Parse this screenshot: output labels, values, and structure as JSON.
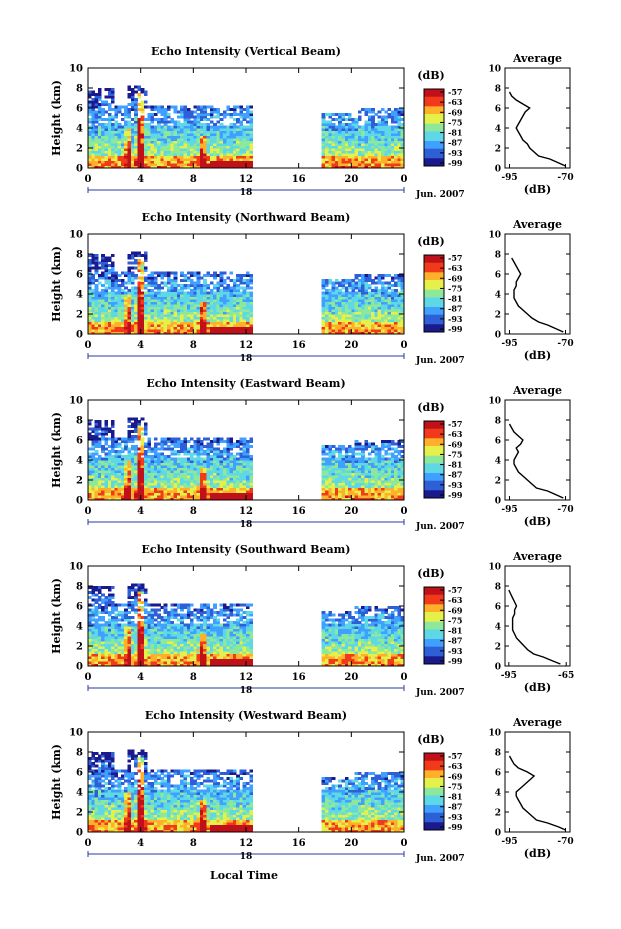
{
  "figure": {
    "xlabel": "Local Time",
    "date_label": "Jun. 2007",
    "day_marker": "18",
    "xticks": [
      "0",
      "4",
      "8",
      "12",
      "16",
      "20",
      "0"
    ],
    "yticks": [
      "0",
      "2",
      "4",
      "6",
      "8",
      "10"
    ],
    "ylabel": "Height (km)",
    "colorbar_unit": "(dB)",
    "colorbar_ticks": [
      "-57",
      "-63",
      "-69",
      "-75",
      "-81",
      "-87",
      "-93",
      "-99"
    ],
    "colorbar_colors": [
      "#1a1a8c",
      "#2e5fd6",
      "#3fa0ff",
      "#5fd8e6",
      "#8ee89a",
      "#e6f04a",
      "#ffb02a",
      "#f03a1a",
      "#c0101a"
    ],
    "avg_title": "Average",
    "avg_xlabel": "(dB)"
  },
  "chart_data": [
    {
      "type": "heatmap",
      "title": "Echo Intensity (Vertical Beam)",
      "x_range_hours": [
        0,
        24
      ],
      "y_range_km": [
        0,
        10
      ],
      "data_gap_hours": [
        12.3,
        17.7
      ],
      "average_profile": {
        "type": "line",
        "title": "Average",
        "xlabel": "(dB)",
        "xticks": [
          "-95",
          "-70"
        ],
        "xlim": [
          -97,
          -68
        ],
        "height_km": [
          0.2,
          0.5,
          0.9,
          1.2,
          1.6,
          2.0,
          2.4,
          2.8,
          3.2,
          3.6,
          4.0,
          4.4,
          4.8,
          5.2,
          5.6,
          6.0,
          6.4,
          6.8,
          7.2,
          7.6
        ],
        "db": [
          -70,
          -73,
          -77,
          -82,
          -84,
          -86,
          -87,
          -89,
          -90,
          -91,
          -92,
          -91,
          -90,
          -89,
          -88,
          -86,
          -89,
          -92,
          -94,
          -95
        ]
      }
    },
    {
      "type": "heatmap",
      "title": "Echo Intensity (Northward Beam)",
      "x_range_hours": [
        0,
        24
      ],
      "y_range_km": [
        0,
        10
      ],
      "data_gap_hours": [
        12.3,
        17.7
      ],
      "average_profile": {
        "type": "line",
        "title": "Average",
        "xlabel": "(dB)",
        "xticks": [
          "-95",
          "-70"
        ],
        "xlim": [
          -97,
          -68
        ],
        "height_km": [
          0.2,
          0.5,
          0.9,
          1.2,
          1.6,
          2.0,
          2.4,
          2.8,
          3.2,
          3.6,
          4.0,
          4.4,
          4.8,
          5.2,
          5.6,
          6.0,
          6.4,
          6.8,
          7.2,
          7.6
        ],
        "db": [
          -71,
          -74,
          -78,
          -82,
          -85,
          -87,
          -89,
          -91,
          -92,
          -93,
          -93,
          -93,
          -92,
          -92,
          -91,
          -90,
          -91,
          -92,
          -93,
          -94
        ]
      }
    },
    {
      "type": "heatmap",
      "title": "Echo Intensity (Eastward Beam)",
      "x_range_hours": [
        0,
        24
      ],
      "y_range_km": [
        0,
        10
      ],
      "data_gap_hours": [
        12.3,
        17.7
      ],
      "average_profile": {
        "type": "line",
        "title": "Average",
        "xlabel": "(dB)",
        "xticks": [
          "-95",
          "-70"
        ],
        "xlim": [
          -97,
          -68
        ],
        "height_km": [
          0.2,
          0.5,
          0.9,
          1.2,
          1.6,
          2.0,
          2.4,
          2.8,
          3.2,
          3.6,
          4.0,
          4.4,
          4.8,
          5.2,
          5.6,
          6.0,
          6.4,
          6.8,
          7.2,
          7.6
        ],
        "db": [
          -71,
          -74,
          -78,
          -83,
          -85,
          -87,
          -89,
          -91,
          -92,
          -93,
          -93,
          -92,
          -91,
          -92,
          -90,
          -89,
          -91,
          -93,
          -94,
          -95
        ]
      }
    },
    {
      "type": "heatmap",
      "title": "Echo Intensity (Southward Beam)",
      "x_range_hours": [
        0,
        24
      ],
      "y_range_km": [
        0,
        10
      ],
      "data_gap_hours": [
        12.3,
        17.7
      ],
      "average_profile": {
        "type": "line",
        "title": "Average",
        "xlabel": "(dB)",
        "xticks": [
          "-95",
          "-65"
        ],
        "xlim": [
          -97,
          -63
        ],
        "height_km": [
          0.2,
          0.5,
          0.9,
          1.2,
          1.6,
          2.0,
          2.4,
          2.8,
          3.2,
          3.6,
          4.0,
          4.4,
          4.8,
          5.2,
          5.6,
          6.0,
          6.4,
          6.8,
          7.2,
          7.6
        ],
        "db": [
          -68,
          -72,
          -77,
          -82,
          -85,
          -87,
          -89,
          -91,
          -92,
          -93,
          -93,
          -93,
          -93,
          -92,
          -92,
          -91,
          -92,
          -93,
          -94,
          -95
        ]
      }
    },
    {
      "type": "heatmap",
      "title": "Echo Intensity (Westward Beam)",
      "x_range_hours": [
        0,
        24
      ],
      "y_range_km": [
        0,
        10
      ],
      "data_gap_hours": [
        12.3,
        17.7
      ],
      "average_profile": {
        "type": "line",
        "title": "Average",
        "xlabel": "(dB)",
        "xticks": [
          "-95",
          "-70"
        ],
        "xlim": [
          -97,
          -68
        ],
        "height_km": [
          0.2,
          0.5,
          0.9,
          1.2,
          1.6,
          2.0,
          2.4,
          2.8,
          3.2,
          3.6,
          4.0,
          4.4,
          4.8,
          5.2,
          5.6,
          6.0,
          6.4,
          6.8,
          7.2,
          7.6
        ],
        "db": [
          -70,
          -73,
          -78,
          -83,
          -85,
          -87,
          -89,
          -90,
          -91,
          -92,
          -92,
          -90,
          -88,
          -86,
          -84,
          -87,
          -91,
          -93,
          -94,
          -95
        ]
      }
    }
  ]
}
